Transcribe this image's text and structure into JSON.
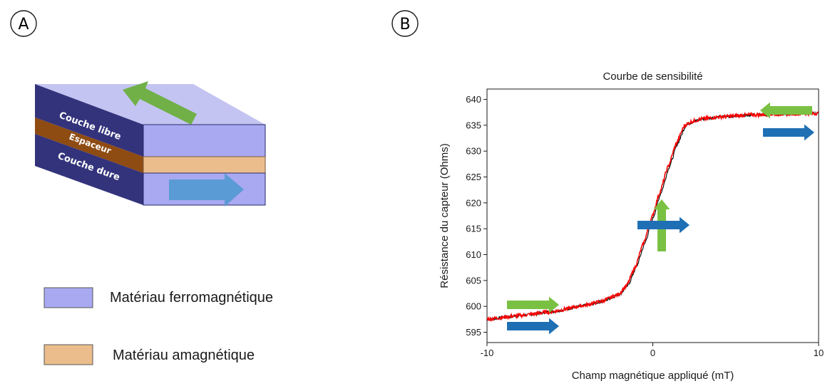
{
  "panel_a": {
    "tag": "A",
    "layers": {
      "free": "Couche libre",
      "spacer": "Espaceur",
      "hard": "Couche dure"
    },
    "legend": [
      {
        "label": "Matériau ferromagnétique",
        "color": "#a9a9f2"
      },
      {
        "label": "Matériau amagnétique",
        "color": "#ebbd8c"
      }
    ],
    "colors": {
      "ferro_side": "#33337c",
      "ferro_front": "#a9a9f2",
      "ferro_top": "#c4c4f2",
      "spacer_side": "#8e4b12",
      "spacer_front": "#ebbd8c",
      "free_arrow": "#70b047",
      "hard_arrow": "#5b9bd5"
    }
  },
  "panel_b": {
    "tag": "B",
    "colors": {
      "fit_curve": "#ff0000",
      "data_curve": "#000000",
      "free_arrow": "#7ac143",
      "hard_arrow": "#1f6fb4"
    }
  },
  "chart_data": {
    "type": "line",
    "title": "Courbe de sensibilité",
    "xlabel": "Champ magnétique appliqué (mT)",
    "ylabel": "Résistance du capteur (Ohms)",
    "xlim": [
      -10,
      10
    ],
    "ylim": [
      593,
      642
    ],
    "xticks": [
      -10,
      0,
      10
    ],
    "yticks": [
      595,
      600,
      605,
      610,
      615,
      620,
      625,
      630,
      635,
      640
    ],
    "grid": false,
    "series": [
      {
        "x": [
          -10,
          -8,
          -6,
          -4,
          -3,
          -2,
          -1.5,
          -1,
          -0.5,
          0,
          0.5,
          1,
          1.5,
          2,
          2.5,
          3,
          4,
          6,
          8,
          10
        ],
        "y": [
          597.5,
          598.2,
          599.0,
          600.2,
          601.0,
          602.3,
          604.0,
          607.5,
          612.0,
          617.0,
          622.0,
          627.0,
          631.5,
          635.0,
          635.8,
          636.2,
          636.6,
          637.0,
          637.2,
          637.3
        ]
      }
    ]
  }
}
